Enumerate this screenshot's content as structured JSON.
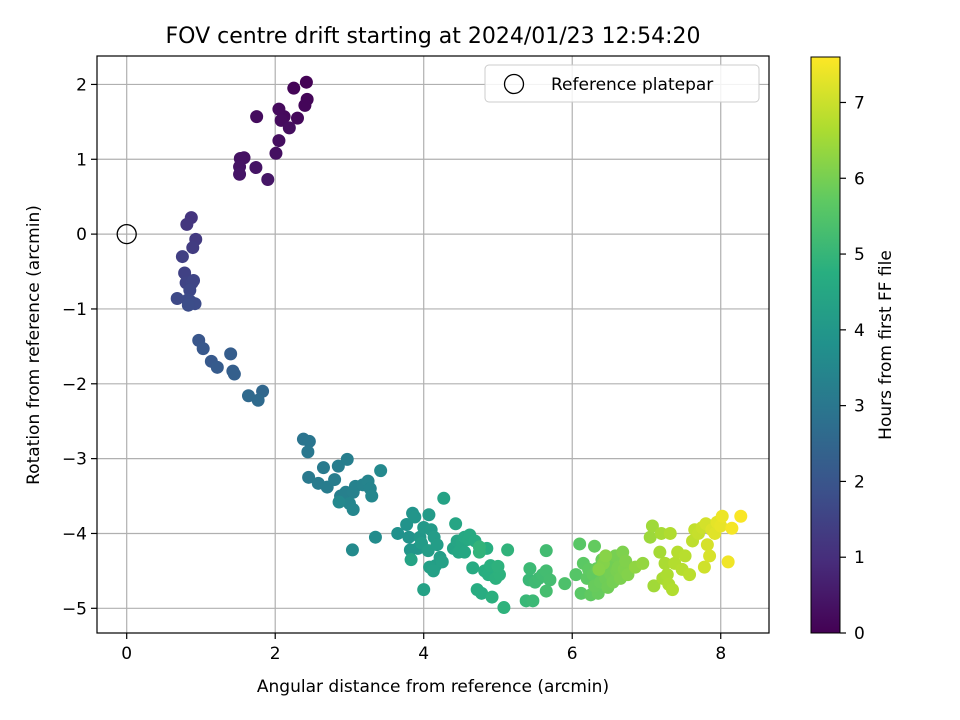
{
  "chart_data": {
    "type": "scatter",
    "title": "FOV centre drift starting at 2024/01/23 12:54:20",
    "xlabel": "Angular distance from reference (arcmin)",
    "ylabel": "Rotation from reference (arcmin)",
    "xlim": [
      -0.4,
      8.65
    ],
    "ylim": [
      -5.33,
      2.38
    ],
    "xticks": [
      0,
      2,
      4,
      6,
      8
    ],
    "yticks": [
      -5,
      -4,
      -3,
      -2,
      -1,
      0,
      1,
      2
    ],
    "grid": true,
    "legend": {
      "position": "top-right",
      "entries": [
        "Reference platepar"
      ]
    },
    "reference": {
      "name": "Reference platepar",
      "x": 0,
      "y": 0
    },
    "colorbar": {
      "label": "Hours from first FF file",
      "range": [
        0,
        7.6
      ],
      "ticks": [
        0,
        1,
        2,
        3,
        4,
        5,
        6,
        7
      ],
      "colormap": "viridis"
    },
    "series": [
      {
        "points": [
          [
            2.42,
            2.03,
            0.05
          ],
          [
            2.25,
            1.95,
            0.08
          ],
          [
            2.43,
            1.8,
            0.1
          ],
          [
            2.4,
            1.72,
            0.12
          ],
          [
            2.3,
            1.55,
            0.15
          ],
          [
            2.12,
            1.57,
            0.18
          ],
          [
            2.05,
            1.67,
            0.2
          ],
          [
            2.08,
            1.52,
            0.22
          ],
          [
            1.75,
            1.57,
            0.25
          ],
          [
            2.19,
            1.42,
            0.28
          ],
          [
            2.05,
            1.25,
            0.3
          ],
          [
            2.01,
            1.08,
            0.33
          ],
          [
            1.58,
            1.02,
            0.36
          ],
          [
            1.53,
            1.01,
            0.38
          ],
          [
            1.52,
            0.9,
            0.4
          ],
          [
            1.74,
            0.89,
            0.42
          ],
          [
            1.52,
            0.8,
            0.44
          ],
          [
            1.9,
            0.73,
            0.46
          ],
          [
            0.87,
            0.22,
            1.15
          ],
          [
            0.81,
            0.13,
            1.2
          ],
          [
            0.93,
            -0.07,
            1.3
          ],
          [
            0.89,
            -0.18,
            1.35
          ],
          [
            0.75,
            -0.3,
            1.45
          ],
          [
            0.78,
            -0.52,
            1.5
          ],
          [
            0.8,
            -0.65,
            1.55
          ],
          [
            0.88,
            -0.65,
            1.58
          ],
          [
            0.9,
            -0.62,
            1.6
          ],
          [
            0.85,
            -0.75,
            1.65
          ],
          [
            0.68,
            -0.86,
            1.7
          ],
          [
            0.82,
            -0.88,
            1.72
          ],
          [
            0.86,
            -0.9,
            1.75
          ],
          [
            0.92,
            -0.93,
            1.78
          ],
          [
            0.83,
            -0.95,
            1.8
          ],
          [
            0.97,
            -1.42,
            2.05
          ],
          [
            1.03,
            -1.53,
            2.1
          ],
          [
            1.14,
            -1.7,
            2.15
          ],
          [
            1.22,
            -1.78,
            2.2
          ],
          [
            1.4,
            -1.6,
            2.25
          ],
          [
            1.43,
            -1.83,
            2.3
          ],
          [
            1.45,
            -1.87,
            2.33
          ],
          [
            1.83,
            -2.1,
            2.55
          ],
          [
            1.64,
            -2.16,
            2.6
          ],
          [
            1.77,
            -2.22,
            2.65
          ],
          [
            2.38,
            -2.74,
            2.95
          ],
          [
            2.46,
            -2.77,
            2.98
          ],
          [
            2.44,
            -2.91,
            3.02
          ],
          [
            2.45,
            -3.25,
            3.1
          ],
          [
            2.65,
            -3.12,
            3.12
          ],
          [
            2.58,
            -3.33,
            3.15
          ],
          [
            2.7,
            -3.38,
            3.18
          ],
          [
            2.8,
            -3.28,
            3.2
          ],
          [
            2.85,
            -3.1,
            3.22
          ],
          [
            2.97,
            -3.01,
            3.25
          ],
          [
            2.88,
            -3.5,
            3.28
          ],
          [
            2.95,
            -3.45,
            3.3
          ],
          [
            3.05,
            -3.45,
            3.32
          ],
          [
            3.08,
            -3.37,
            3.35
          ],
          [
            3.18,
            -3.35,
            3.38
          ],
          [
            3.25,
            -3.3,
            3.4
          ],
          [
            3.28,
            -3.4,
            3.42
          ],
          [
            3.0,
            -3.6,
            3.45
          ],
          [
            3.05,
            -3.68,
            3.48
          ],
          [
            3.3,
            -3.5,
            3.5
          ],
          [
            2.86,
            -3.58,
            3.52
          ],
          [
            3.42,
            -3.16,
            3.55
          ],
          [
            3.04,
            -4.22,
            3.6
          ],
          [
            3.35,
            -4.05,
            3.65
          ],
          [
            3.65,
            -4.0,
            3.8
          ],
          [
            3.77,
            -3.88,
            3.85
          ],
          [
            3.8,
            -4.05,
            3.88
          ],
          [
            3.85,
            -3.73,
            3.9
          ],
          [
            3.88,
            -3.78,
            3.92
          ],
          [
            3.82,
            -4.22,
            3.95
          ],
          [
            3.92,
            -4.2,
            3.98
          ],
          [
            3.95,
            -4.05,
            4.0
          ],
          [
            4.0,
            -3.92,
            4.05
          ],
          [
            4.07,
            -3.75,
            4.08
          ],
          [
            4.1,
            -3.95,
            4.1
          ],
          [
            3.97,
            -4.13,
            4.12
          ],
          [
            4.14,
            -4.05,
            4.15
          ],
          [
            4.06,
            -4.23,
            4.18
          ],
          [
            4.18,
            -4.15,
            4.2
          ],
          [
            4.22,
            -4.32,
            4.22
          ],
          [
            4.16,
            -4.43,
            4.24
          ],
          [
            4.08,
            -4.45,
            4.26
          ],
          [
            4.13,
            -4.5,
            4.28
          ],
          [
            4.25,
            -4.38,
            4.3
          ],
          [
            4.0,
            -4.75,
            4.32
          ],
          [
            4.27,
            -3.53,
            4.35
          ],
          [
            3.83,
            -4.35,
            4.38
          ],
          [
            4.4,
            -4.2,
            4.4
          ],
          [
            4.45,
            -4.1,
            4.42
          ],
          [
            4.43,
            -3.87,
            4.45
          ],
          [
            4.47,
            -4.25,
            4.48
          ],
          [
            4.52,
            -4.12,
            4.5
          ],
          [
            4.55,
            -4.25,
            4.52
          ],
          [
            4.55,
            -4.05,
            4.55
          ],
          [
            4.6,
            -4.08,
            4.58
          ],
          [
            4.62,
            -4.02,
            4.6
          ],
          [
            4.66,
            -4.46,
            4.62
          ],
          [
            4.69,
            -4.1,
            4.64
          ],
          [
            4.72,
            -4.75,
            4.68
          ],
          [
            4.78,
            -4.8,
            4.7
          ],
          [
            4.82,
            -4.5,
            4.72
          ],
          [
            4.85,
            -4.2,
            4.74
          ],
          [
            4.87,
            -4.55,
            4.76
          ],
          [
            4.9,
            -4.43,
            4.78
          ],
          [
            4.92,
            -4.85,
            4.8
          ],
          [
            4.97,
            -4.6,
            4.82
          ],
          [
            5.02,
            -4.55,
            4.84
          ],
          [
            5.0,
            -4.44,
            4.86
          ],
          [
            5.08,
            -4.99,
            4.88
          ],
          [
            5.13,
            -4.22,
            4.9
          ],
          [
            4.75,
            -4.25,
            4.92
          ],
          [
            4.75,
            -4.18,
            4.94
          ],
          [
            5.38,
            -4.9,
            5.05
          ],
          [
            5.42,
            -4.62,
            5.08
          ],
          [
            5.47,
            -4.9,
            5.1
          ],
          [
            5.43,
            -4.47,
            5.12
          ],
          [
            5.5,
            -4.65,
            5.15
          ],
          [
            5.55,
            -4.6,
            5.18
          ],
          [
            5.6,
            -4.55,
            5.2
          ],
          [
            5.65,
            -4.23,
            5.22
          ],
          [
            5.65,
            -4.5,
            5.24
          ],
          [
            5.7,
            -4.62,
            5.26
          ],
          [
            5.65,
            -4.77,
            5.28
          ],
          [
            5.9,
            -4.67,
            5.4
          ],
          [
            6.05,
            -4.55,
            5.55
          ],
          [
            6.1,
            -4.14,
            5.6
          ],
          [
            6.12,
            -4.8,
            5.62
          ],
          [
            6.15,
            -4.4,
            5.65
          ],
          [
            6.2,
            -4.6,
            5.68
          ],
          [
            6.22,
            -4.48,
            5.7
          ],
          [
            6.25,
            -4.82,
            5.72
          ],
          [
            6.28,
            -4.55,
            5.74
          ],
          [
            6.3,
            -4.17,
            5.76
          ],
          [
            6.33,
            -4.47,
            5.78
          ],
          [
            6.35,
            -4.8,
            5.8
          ],
          [
            6.3,
            -4.7,
            5.82
          ],
          [
            6.38,
            -4.65,
            5.84
          ],
          [
            6.4,
            -4.35,
            5.86
          ],
          [
            6.42,
            -4.5,
            5.88
          ],
          [
            6.45,
            -4.6,
            5.9
          ],
          [
            6.48,
            -4.72,
            5.92
          ],
          [
            6.5,
            -4.4,
            5.94
          ],
          [
            6.52,
            -4.55,
            5.96
          ],
          [
            6.55,
            -4.65,
            5.98
          ],
          [
            6.58,
            -4.3,
            6.0
          ],
          [
            6.6,
            -4.5,
            6.02
          ],
          [
            6.62,
            -4.45,
            6.04
          ],
          [
            6.65,
            -4.6,
            6.06
          ],
          [
            6.68,
            -4.25,
            6.08
          ],
          [
            6.7,
            -4.48,
            6.1
          ],
          [
            6.72,
            -4.37,
            6.12
          ],
          [
            6.75,
            -4.55,
            6.14
          ],
          [
            6.42,
            -4.4,
            6.16
          ],
          [
            6.36,
            -4.48,
            6.18
          ],
          [
            6.45,
            -4.3,
            6.2
          ],
          [
            6.85,
            -4.45,
            6.3
          ],
          [
            6.95,
            -4.4,
            6.35
          ],
          [
            7.05,
            -4.05,
            6.45
          ],
          [
            7.08,
            -3.9,
            6.48
          ],
          [
            7.1,
            -4.7,
            6.5
          ],
          [
            7.18,
            -4.25,
            6.55
          ],
          [
            7.2,
            -4.0,
            6.58
          ],
          [
            7.22,
            -4.6,
            6.6
          ],
          [
            7.25,
            -4.4,
            6.62
          ],
          [
            7.28,
            -4.55,
            6.64
          ],
          [
            7.3,
            -4.68,
            6.66
          ],
          [
            7.32,
            -4.0,
            6.68
          ],
          [
            7.35,
            -4.75,
            6.7
          ],
          [
            7.38,
            -4.4,
            6.72
          ],
          [
            7.42,
            -4.25,
            6.74
          ],
          [
            7.48,
            -4.48,
            6.76
          ],
          [
            7.52,
            -4.3,
            6.78
          ],
          [
            7.58,
            -4.55,
            6.8
          ],
          [
            7.62,
            -4.1,
            6.85
          ],
          [
            7.65,
            -3.95,
            6.9
          ],
          [
            7.7,
            -4.0,
            6.95
          ],
          [
            7.75,
            -3.92,
            7.0
          ],
          [
            7.78,
            -4.45,
            7.05
          ],
          [
            7.8,
            -3.87,
            7.1
          ],
          [
            7.82,
            -4.15,
            7.12
          ],
          [
            7.85,
            -4.3,
            7.15
          ],
          [
            7.88,
            -3.95,
            7.2
          ],
          [
            7.92,
            -4.0,
            7.25
          ],
          [
            7.95,
            -3.85,
            7.3
          ],
          [
            8.0,
            -3.9,
            7.35
          ],
          [
            8.02,
            -3.77,
            7.4
          ],
          [
            8.1,
            -4.38,
            7.45
          ],
          [
            8.15,
            -3.93,
            7.5
          ],
          [
            8.27,
            -3.77,
            7.55
          ]
        ]
      }
    ]
  }
}
